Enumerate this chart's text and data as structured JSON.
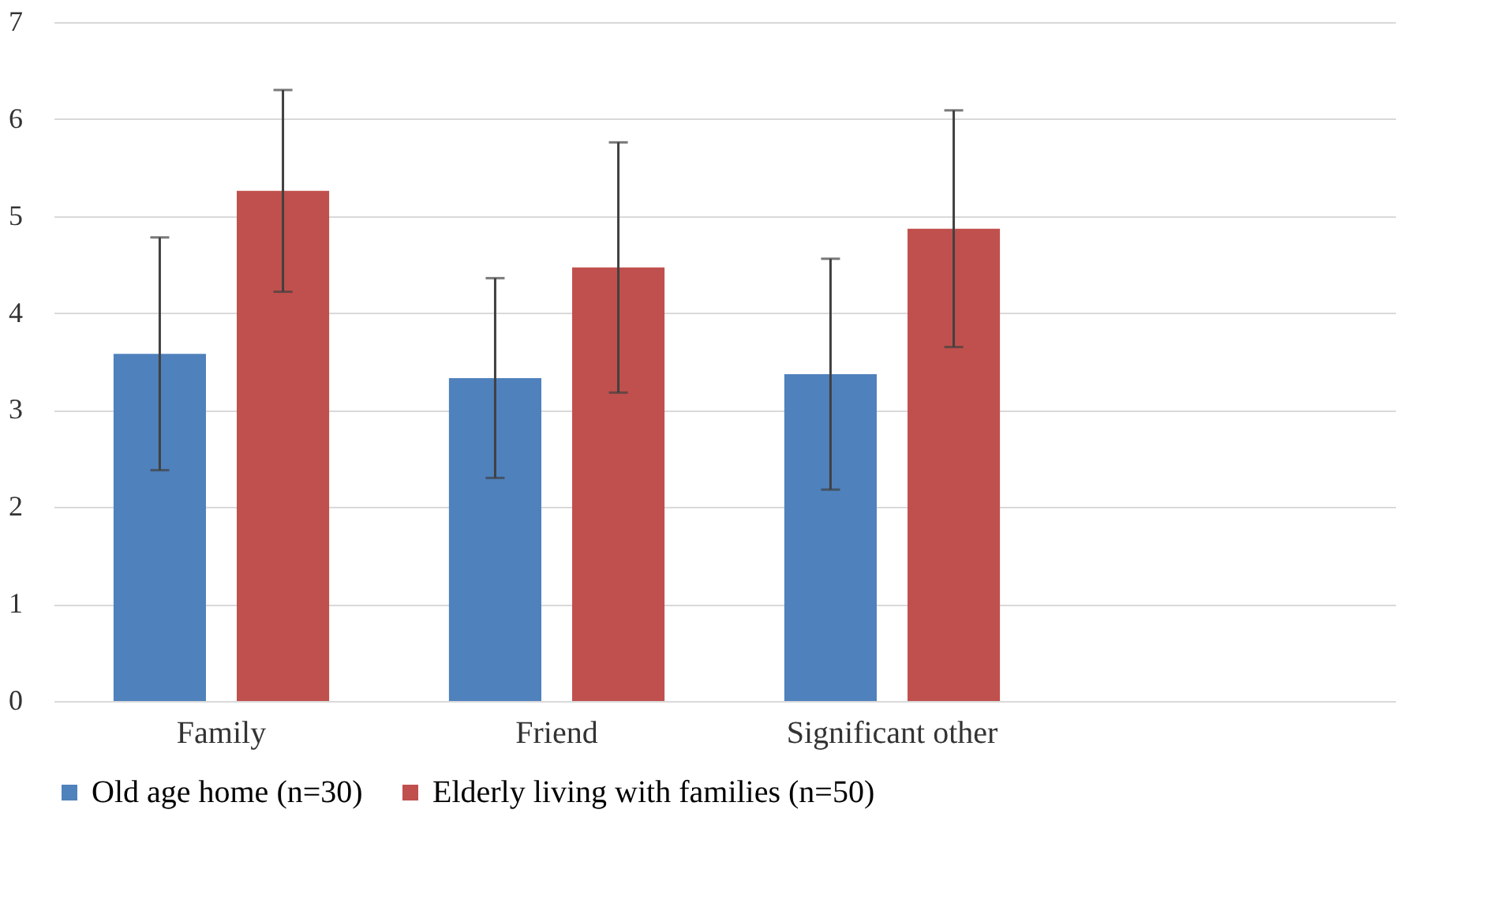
{
  "chart_data": {
    "type": "bar",
    "categories": [
      "Family",
      "Friend",
      "Significant other",
      null
    ],
    "series": [
      {
        "name": "Old age home (n=30)",
        "color": "#4f81bd",
        "values": [
          3.58,
          3.33,
          3.37,
          null
        ],
        "errors": [
          1.2,
          1.03,
          1.19,
          null
        ]
      },
      {
        "name": "Elderly living with families (n=50)",
        "color": "#c0504d",
        "values": [
          5.26,
          4.47,
          4.87,
          null
        ],
        "errors": [
          1.04,
          1.29,
          1.22,
          null
        ]
      }
    ],
    "ylim": [
      0,
      7
    ],
    "yticks": [
      0,
      1,
      2,
      3,
      4,
      5,
      6,
      7
    ],
    "grid": "y",
    "legend": "bottom"
  }
}
